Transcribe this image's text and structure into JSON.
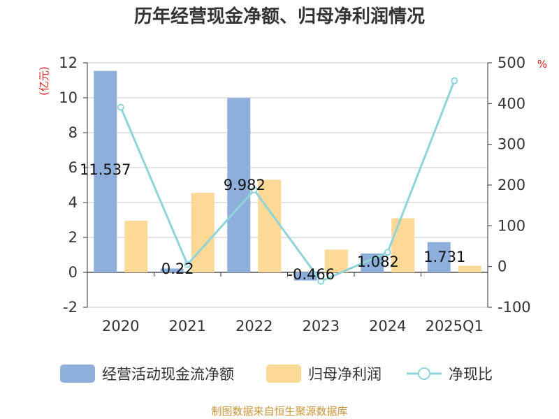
{
  "chart_data": {
    "type": "bar",
    "title": "历年经营现金净额、归母净利润情况",
    "categories": [
      "2020",
      "2021",
      "2022",
      "2023",
      "2024",
      "2025Q1"
    ],
    "series": [
      {
        "name": "经营活动现金流净额",
        "type": "bar",
        "axis": "left",
        "color": "#8eaedb",
        "values": [
          11.537,
          0.22,
          9.982,
          -0.466,
          1.082,
          1.731
        ],
        "labels": [
          "11.537",
          "0.22",
          "9.982",
          "-0.466",
          "1.082",
          "1.731"
        ]
      },
      {
        "name": "归母净利润",
        "type": "bar",
        "axis": "left",
        "color": "#fdd998",
        "values": [
          2.95,
          4.55,
          5.3,
          1.3,
          3.1,
          0.38
        ]
      },
      {
        "name": "净现比",
        "type": "line",
        "axis": "right",
        "color": "#8fd4d9",
        "values": [
          391,
          5,
          188,
          -36,
          35,
          456
        ]
      }
    ],
    "y_left": {
      "unit": "(亿元)",
      "min": -2,
      "max": 12,
      "ticks": [
        "-2",
        "0",
        "2",
        "4",
        "6",
        "8",
        "10",
        "12"
      ]
    },
    "y_right": {
      "unit": "%",
      "min": -100,
      "max": 500,
      "ticks": [
        "-100",
        "0",
        "100",
        "200",
        "300",
        "400",
        "500"
      ]
    },
    "grid": true,
    "legend": "bottom",
    "source": "制图数据来自恒生聚源数据库"
  }
}
